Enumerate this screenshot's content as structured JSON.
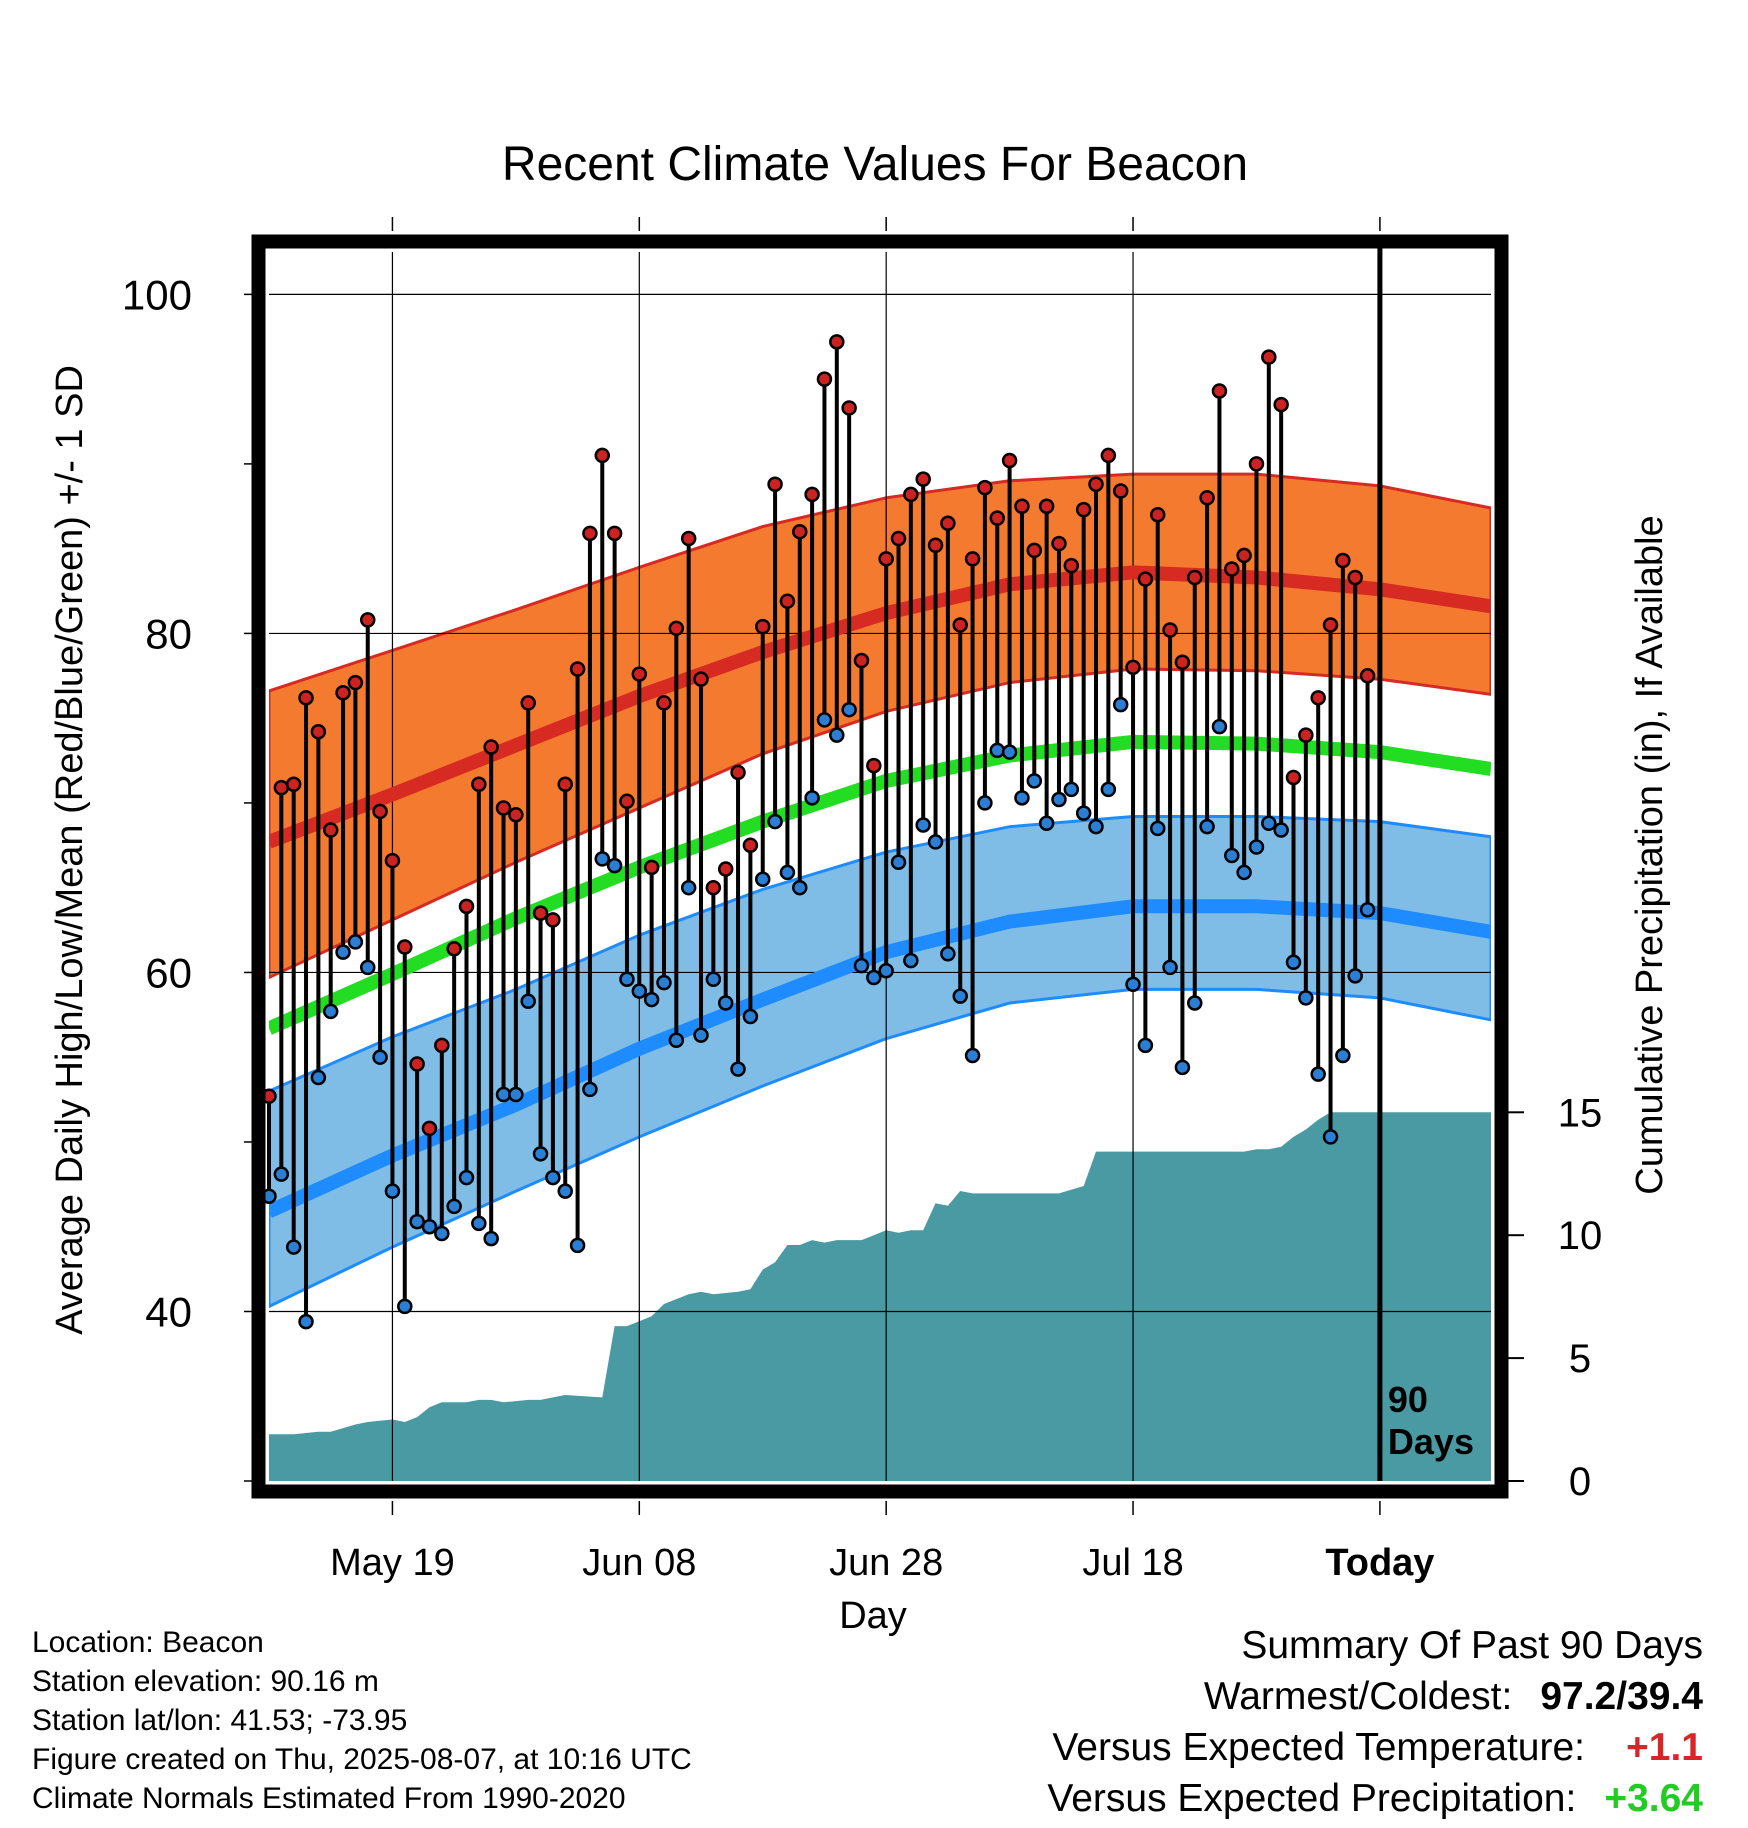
{
  "chart_data": {
    "type": "line",
    "title": "Recent Climate Values For Beacon",
    "xlabel": "Day",
    "ylabel": "Average Daily High/Low/Mean (Red/Blue/Green) +/- 1 SD",
    "ylabel_right": "Cumulative Precipitation (in), If Available",
    "ylim": [
      30,
      102.5
    ],
    "ylim_right": [
      0,
      50
    ],
    "y_ticks": [
      40,
      60,
      80,
      100
    ],
    "y_right_ticks": [
      0,
      5,
      10,
      15
    ],
    "x_ticks": [
      "May 19",
      "Jun 08",
      "Jun 28",
      "Jul 18",
      "Today"
    ],
    "x_tick_day_index": [
      10,
      30,
      50,
      70,
      90
    ],
    "days_marker_label": [
      "90",
      "Days"
    ],
    "grid": true,
    "x_day_range": [
      0,
      99
    ],
    "series": [
      {
        "name": "High",
        "values": [
          52.7,
          70.9,
          71.1,
          76.2,
          74.2,
          68.4,
          76.5,
          77.1,
          80.8,
          69.5,
          66.6,
          61.5,
          54.6,
          50.8,
          55.7,
          61.4,
          63.9,
          71.1,
          73.3,
          69.7,
          69.3,
          75.9,
          63.5,
          63.1,
          71.1,
          77.9,
          85.9,
          90.5,
          85.9,
          70.1,
          77.6,
          66.2,
          75.9,
          80.3,
          85.6,
          77.3,
          65.0,
          66.1,
          71.8,
          67.5,
          80.4,
          88.8,
          81.9,
          86.0,
          88.2,
          95.0,
          97.2,
          93.3,
          78.4,
          72.2,
          84.4,
          85.6,
          88.2,
          89.1,
          85.2,
          86.5,
          80.5,
          84.4,
          88.6,
          86.8,
          90.2,
          87.5,
          84.9,
          87.5,
          85.3,
          84.0,
          87.3,
          88.8,
          90.5,
          88.4,
          78.0,
          83.2,
          87.0,
          80.2,
          78.3,
          83.3,
          88.0,
          94.3,
          83.8,
          84.6,
          90.0,
          96.3,
          93.5,
          71.5,
          74.0,
          76.2,
          80.5,
          84.3,
          83.3,
          77.5
        ]
      },
      {
        "name": "Low",
        "values": [
          46.8,
          48.1,
          43.8,
          39.4,
          53.8,
          57.7,
          61.2,
          61.8,
          60.3,
          55.0,
          47.1,
          40.3,
          45.3,
          45.0,
          44.6,
          46.2,
          47.9,
          45.2,
          44.3,
          52.8,
          52.8,
          58.3,
          49.3,
          47.9,
          47.1,
          43.9,
          53.1,
          66.7,
          66.3,
          59.6,
          58.9,
          58.4,
          59.4,
          56.0,
          65.0,
          56.3,
          59.6,
          58.2,
          54.3,
          57.4,
          65.5,
          68.9,
          65.9,
          65.0,
          70.3,
          74.9,
          74.0,
          75.5,
          60.4,
          59.7,
          60.1,
          66.5,
          60.7,
          68.7,
          67.7,
          61.1,
          58.6,
          55.1,
          70.0,
          73.1,
          73.0,
          70.3,
          71.3,
          68.8,
          70.2,
          70.8,
          69.4,
          68.6,
          70.8,
          75.8,
          59.3,
          55.7,
          68.5,
          60.3,
          54.4,
          58.2,
          68.6,
          74.5,
          66.9,
          65.9,
          67.4,
          68.8,
          68.4,
          60.6,
          58.5,
          54.0,
          50.3,
          55.1,
          59.8,
          63.7
        ]
      },
      {
        "name": "Normal High",
        "x": [
          0,
          10,
          20,
          30,
          40,
          50,
          60,
          70,
          80,
          90,
          99
        ],
        "values": [
          67.7,
          70.5,
          73.4,
          76.3,
          78.9,
          81.2,
          82.9,
          83.6,
          83.3,
          82.6,
          81.6
        ]
      },
      {
        "name": "Normal Mean",
        "x": [
          0,
          10,
          20,
          30,
          40,
          50,
          60,
          70,
          80,
          90,
          99
        ],
        "values": [
          56.7,
          59.9,
          63.2,
          66.2,
          68.9,
          71.3,
          72.8,
          73.6,
          73.5,
          73.0,
          72.0
        ]
      },
      {
        "name": "Normal Low",
        "x": [
          0,
          10,
          20,
          30,
          40,
          50,
          60,
          70,
          80,
          90,
          99
        ],
        "values": [
          45.9,
          49.2,
          52.2,
          55.5,
          58.4,
          61.2,
          63.0,
          63.9,
          63.9,
          63.5,
          62.4
        ]
      },
      {
        "name": "Normal High +1 SD",
        "x": [
          0,
          10,
          20,
          30,
          40,
          50,
          60,
          70,
          80,
          90,
          99
        ],
        "values": [
          76.6,
          79.0,
          81.4,
          83.9,
          86.3,
          88.0,
          89.0,
          89.4,
          89.4,
          88.7,
          87.4
        ]
      },
      {
        "name": "Normal High -1 SD",
        "x": [
          0,
          10,
          20,
          30,
          40,
          50,
          60,
          70,
          80,
          90,
          99
        ],
        "values": [
          59.7,
          63.1,
          66.5,
          69.7,
          72.9,
          75.4,
          77.1,
          77.9,
          77.8,
          77.3,
          76.4
        ]
      },
      {
        "name": "Normal Low +1 SD",
        "x": [
          0,
          10,
          20,
          30,
          40,
          50,
          60,
          70,
          80,
          90,
          99
        ],
        "values": [
          53.0,
          56.2,
          59.0,
          62.2,
          64.9,
          67.1,
          68.6,
          69.2,
          69.2,
          68.9,
          68.0
        ]
      },
      {
        "name": "Normal Low -1 SD",
        "x": [
          0,
          10,
          20,
          30,
          40,
          50,
          60,
          70,
          80,
          90,
          99
        ],
        "values": [
          40.3,
          43.8,
          47.1,
          50.3,
          53.3,
          56.1,
          58.2,
          59.0,
          59.0,
          58.5,
          57.2
        ]
      },
      {
        "name": "Cumulative Precipitation",
        "x": [
          0,
          2,
          4,
          5,
          7,
          8,
          10,
          11,
          12,
          13,
          14,
          16,
          17,
          18,
          19,
          21,
          22,
          23,
          24,
          27,
          28,
          29,
          30,
          31,
          32,
          33,
          34,
          35,
          36,
          38,
          39,
          40,
          41,
          42,
          43,
          44,
          45,
          46,
          48,
          49,
          50,
          51,
          52,
          53,
          54,
          55,
          56,
          57,
          61,
          62,
          64,
          66,
          67,
          68,
          69,
          70,
          71,
          78,
          79,
          80,
          81,
          82,
          83,
          84,
          85,
          86,
          99
        ],
        "values": [
          1.9,
          1.9,
          2.0,
          2.0,
          2.3,
          2.4,
          2.5,
          2.4,
          2.6,
          3.0,
          3.2,
          3.2,
          3.3,
          3.3,
          3.2,
          3.3,
          3.3,
          3.4,
          3.5,
          3.4,
          6.3,
          6.3,
          6.5,
          6.7,
          7.2,
          7.4,
          7.6,
          7.7,
          7.6,
          7.7,
          7.8,
          8.6,
          8.9,
          9.6,
          9.6,
          9.8,
          9.7,
          9.8,
          9.8,
          10.0,
          10.2,
          10.1,
          10.2,
          10.2,
          11.3,
          11.2,
          11.8,
          11.7,
          11.7,
          11.7,
          11.7,
          12.0,
          13.4,
          13.4,
          13.4,
          13.4,
          13.4,
          13.4,
          13.4,
          13.5,
          13.5,
          13.6,
          14.0,
          14.3,
          14.7,
          15.0,
          15.0
        ]
      }
    ]
  },
  "footer": {
    "location": "Location: Beacon",
    "elevation": "Station elevation: 90.16 m",
    "latlon": "Station lat/lon: 41.53; -73.95",
    "created": "Figure created on Thu, 2025-08-07, at 10:16 UTC",
    "normals": "Climate Normals Estimated From 1990-2020"
  },
  "summary": {
    "title": "Summary Of Past 90 Days",
    "warmest_coldest_label": "Warmest/Coldest:",
    "warmest_coldest_value": "97.2/39.4",
    "temp_label": "Versus Expected Temperature:",
    "temp_value": "+1.1",
    "precip_label": "Versus Expected Precipitation:",
    "precip_value": "+3.64"
  },
  "colors": {
    "high_band": "#f47a2f",
    "high_line": "#d62a22",
    "mean_line": "#22dd22",
    "low_band": "#80bde6",
    "low_line": "#1e8cff",
    "precip_fill": "#4a9aa3",
    "high_point": "#cc2222",
    "low_point": "#2a7fd4",
    "temp_delta": "#d62728",
    "precip_delta": "#22cc22"
  }
}
